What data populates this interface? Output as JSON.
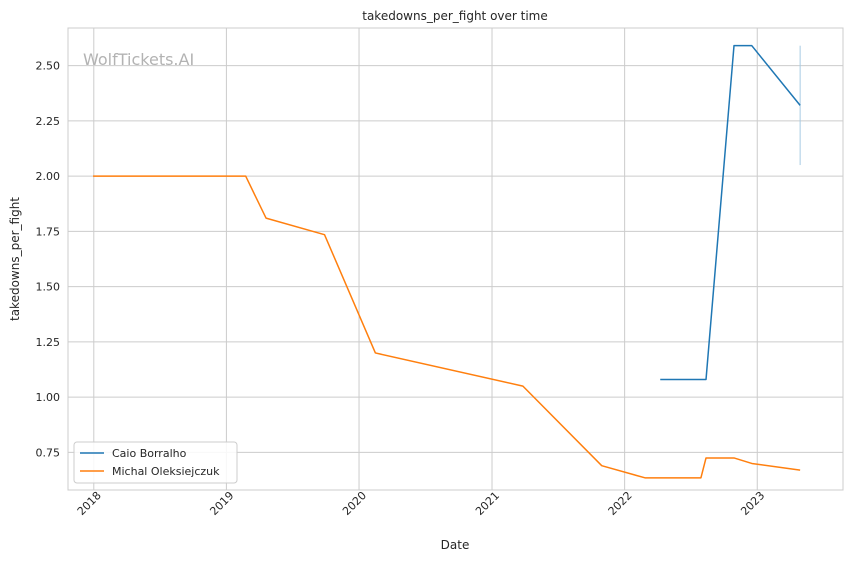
{
  "chart_data": {
    "type": "line",
    "title": "takedowns_per_fight over time",
    "xlabel": "Date",
    "ylabel": "takedowns_per_fight",
    "watermark": "WolfTickets.AI",
    "xlim": [
      "2017-10-22",
      "2023-08-25"
    ],
    "ylim": [
      0.58,
      2.67
    ],
    "x_ticks": [
      "2018-01-01",
      "2019-01-01",
      "2020-01-01",
      "2021-01-01",
      "2022-01-01",
      "2023-01-01"
    ],
    "x_tick_labels": [
      "2018",
      "2019",
      "2020",
      "2021",
      "2022",
      "2023"
    ],
    "y_ticks": [
      0.75,
      1.0,
      1.25,
      1.5,
      1.75,
      2.0,
      2.25,
      2.5
    ],
    "y_tick_labels": [
      "0.75",
      "1.00",
      "1.25",
      "1.50",
      "1.75",
      "2.00",
      "2.25",
      "2.50"
    ],
    "grid": true,
    "legend_position": "lower-left",
    "series": [
      {
        "name": "Caio Borralho",
        "color": "#1f77b4",
        "points": [
          [
            "2022-04-09",
            1.08
          ],
          [
            "2022-08-13",
            1.08
          ],
          [
            "2022-10-29",
            2.59
          ],
          [
            "2022-12-17",
            2.59
          ],
          [
            "2023-04-29",
            2.32
          ]
        ]
      },
      {
        "name": "Michal Oleksiejczuk",
        "color": "#ff7f0e",
        "points": [
          [
            "2017-12-30",
            2.0
          ],
          [
            "2019-02-23",
            2.0
          ],
          [
            "2019-04-20",
            1.81
          ],
          [
            "2019-09-28",
            1.735
          ],
          [
            "2020-02-15",
            1.2
          ],
          [
            "2021-03-27",
            1.05
          ],
          [
            "2021-10-30",
            0.69
          ],
          [
            "2022-02-26",
            0.635
          ],
          [
            "2022-07-30",
            0.635
          ],
          [
            "2022-08-13",
            0.725
          ],
          [
            "2022-10-29",
            0.725
          ],
          [
            "2022-12-17",
            0.7
          ],
          [
            "2023-04-29",
            0.67
          ]
        ]
      }
    ],
    "error_bar": {
      "series": "Caio Borralho",
      "color": "#a6cbe3",
      "x": "2023-04-29",
      "low": 2.05,
      "high": 2.59
    }
  }
}
